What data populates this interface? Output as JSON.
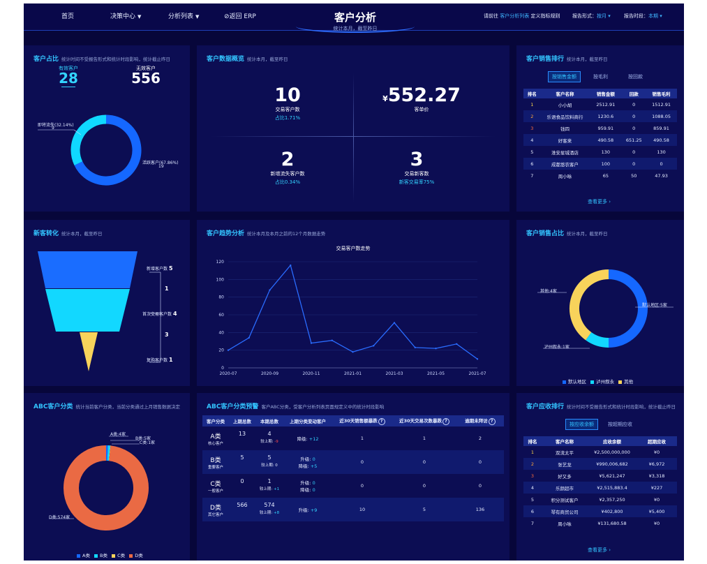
{
  "header": {
    "nav": [
      {
        "label": "首页",
        "dropdown": false
      },
      {
        "label": "决策中心",
        "dropdown": true
      },
      {
        "label": "分析列表",
        "dropdown": true
      },
      {
        "label": "⊘返回 ERP",
        "dropdown": false
      }
    ],
    "title": "客户分析",
    "subtitle": "统计本月，截至昨日",
    "goto_prefix": "请前往",
    "goto_link": "客户分析列表",
    "goto_suffix": "定义指标规则",
    "report_form_label": "报告形式：",
    "report_form_value": "按月",
    "report_period_label": "报告时段：",
    "report_period_value": "本期"
  },
  "customer_ratio": {
    "title": "客户占比",
    "subtitle": "统计时间不受报告形式和统计时段影响，统计截止昨日",
    "active_label": "有效客户",
    "active_value": "28",
    "inactive_label": "无效客户",
    "inactive_value": "556",
    "slices": [
      {
        "label": "即将流失(32.14%)",
        "count": "9",
        "value": 32.14,
        "color": "#10d8ff"
      },
      {
        "label": "活跃客户(67.86%)",
        "count": "19",
        "value": 67.86,
        "color": "#1568ff"
      }
    ]
  },
  "overview": {
    "title": "客户数据概览",
    "subtitle": "统计本月，截至昨日",
    "cells": [
      {
        "value": "10",
        "prefix": "",
        "label": "交易客户数",
        "sub": "占比1.71%"
      },
      {
        "value": "552.27",
        "prefix": "¥",
        "label": "客单价",
        "sub": ""
      },
      {
        "value": "2",
        "prefix": "",
        "label": "新增流失客户数",
        "sub": "占比0.34%"
      },
      {
        "value": "3",
        "prefix": "",
        "label": "交易新客数",
        "sub": "新客交易率75%"
      }
    ]
  },
  "sales_rank": {
    "title": "客户销售排行",
    "subtitle": "统计本月，截至昨日",
    "tabs": [
      "按销售金额",
      "按毛利",
      "按回款"
    ],
    "columns": [
      "排名",
      "客户名称",
      "销售金额",
      "回款",
      "销售毛利"
    ],
    "rows": [
      [
        "1",
        "小小胡",
        "2512.91",
        "0",
        "1512.91"
      ],
      [
        "2",
        "乐语食品饮料商行",
        "1230.6",
        "0",
        "1088.05"
      ],
      [
        "3",
        "钱四",
        "959.91",
        "0",
        "859.91"
      ],
      [
        "4",
        "好客来",
        "490.58",
        "651.25",
        "490.58"
      ],
      [
        "5",
        "淮安星城酒店",
        "130",
        "0",
        "130"
      ],
      [
        "6",
        "成都悠农客户",
        "100",
        "0",
        "0"
      ],
      [
        "7",
        "周小咏",
        "65",
        "50",
        "47.93"
      ]
    ],
    "more": "查看更多 ›"
  },
  "new_conversion": {
    "title": "新客转化",
    "subtitle": "统计本月，截至昨日",
    "stages": [
      {
        "label": "新增客户数",
        "value": "5",
        "color": "#1a6dff"
      },
      {
        "label": "首次交易客户数",
        "value": "4",
        "color": "#12d8ff"
      },
      {
        "label": "复购客户数",
        "value": "1",
        "color": "#f8d35b"
      }
    ],
    "drops": [
      "1",
      "3"
    ]
  },
  "trend": {
    "title": "客户趋势分析",
    "subtitle": "统计本月及本月之前的12个月数据走势"
  },
  "chart_data": {
    "type": "line",
    "title": "交易客户数走势",
    "x": [
      "2020-07",
      "2020-08",
      "2020-09",
      "2020-10",
      "2020-11",
      "2020-12",
      "2021-01",
      "2021-02",
      "2021-03",
      "2021-04",
      "2021-05",
      "2021-06",
      "2021-07"
    ],
    "xticks": [
      "2020-07",
      "2020-09",
      "2020-11",
      "2021-01",
      "2021-03",
      "2021-05",
      "2021-07"
    ],
    "series": [
      {
        "name": "",
        "values": [
          20,
          34,
          88,
          116,
          28,
          31,
          18,
          25,
          51,
          23,
          22,
          27,
          10
        ],
        "color": "#2a6cff"
      }
    ],
    "ylim": [
      0,
      120
    ],
    "yticks": [
      0,
      20,
      40,
      60,
      80,
      100,
      120
    ],
    "grid": true,
    "xlabel": "",
    "ylabel": ""
  },
  "sales_share": {
    "title": "客户销售占比",
    "subtitle": "统计本月，截至昨日",
    "slices": [
      {
        "label": "默认地区:5家",
        "value": 5,
        "color": "#1568ff"
      },
      {
        "label": "泸州叙永:1家",
        "value": 1,
        "color": "#12d8ff"
      },
      {
        "label": "其他:4家",
        "value": 4,
        "color": "#f8d35b"
      }
    ],
    "legend": [
      "默认地区",
      "泸州叙永",
      "其他"
    ]
  },
  "abc": {
    "title": "ABC客户分类",
    "subtitle": "统计当前客户分类，当前分类通过上月销售数据决定",
    "slices": [
      {
        "label": "A类:4家",
        "value": 4,
        "color": "#1568ff"
      },
      {
        "label": "B类:5家",
        "value": 5,
        "color": "#12d8ff"
      },
      {
        "label": "C类:1家",
        "value": 1,
        "color": "#f8d35b"
      },
      {
        "label": "D类:574家",
        "value": 574,
        "color": "#ea6a44"
      }
    ],
    "legend": [
      "A类",
      "B类",
      "C类",
      "D类"
    ]
  },
  "abc_warn": {
    "title": "ABC客户分类预警",
    "subtitle": "客户ABC分类，受客户分析列表页面规定义中的统计时段影响",
    "columns": [
      "客户分类",
      "上期总数",
      "本期总数",
      "上期分类变动客户",
      "近30天销售额暴跌",
      "近30天交易次数暴跌",
      "逾期未拜访"
    ],
    "rows": [
      {
        "cls": "A类",
        "desc": "核心客户",
        "prev": "13",
        "cur": "4",
        "cmp": "较上期:",
        "cmpv": "-9",
        "moves": [
          {
            "k": "降级:",
            "v": "+12"
          }
        ],
        "s": "1",
        "t": "1",
        "o": "2"
      },
      {
        "cls": "B类",
        "desc": "重要客户",
        "prev": "5",
        "cur": "5",
        "cmp": "较上期:",
        "cmpv": "0",
        "moves": [
          {
            "k": "升级:",
            "v": "0"
          },
          {
            "k": "降级:",
            "v": "+5"
          }
        ],
        "s": "0",
        "t": "0",
        "o": "0"
      },
      {
        "cls": "C类",
        "desc": "一般客户",
        "prev": "0",
        "cur": "1",
        "cmp": "较上期:",
        "cmpv": "+1",
        "moves": [
          {
            "k": "升级:",
            "v": "0"
          },
          {
            "k": "降级:",
            "v": "0"
          }
        ],
        "s": "0",
        "t": "0",
        "o": "0"
      },
      {
        "cls": "D类",
        "desc": "其它客户",
        "prev": "566",
        "cur": "574",
        "cmp": "较上期:",
        "cmpv": "+8",
        "moves": [
          {
            "k": "升级:",
            "v": "+9"
          }
        ],
        "s": "10",
        "t": "5",
        "o": "136"
      }
    ]
  },
  "receivable": {
    "title": "客户应收排行",
    "subtitle": "统计时间不受报告形式和统计时段影响，统计截止昨日",
    "tabs": [
      "按应收余额",
      "按超期应收"
    ],
    "columns": [
      "排名",
      "客户名称",
      "应收余额",
      "超期应收"
    ],
    "rows": [
      [
        "1",
        "双流太平",
        "¥2,500,000,000",
        "¥0"
      ],
      [
        "2",
        "张艺龙",
        "¥990,006,682",
        "¥6,972"
      ],
      [
        "3",
        "好又多",
        "¥5,621,247",
        "¥3,318"
      ],
      [
        "4",
        "乐颜超市",
        "¥2,515,883.4",
        "¥227"
      ],
      [
        "5",
        "积分测试客户",
        "¥2,357,250",
        "¥0"
      ],
      [
        "6",
        "琴有商贸公司",
        "¥402,800",
        "¥5,400"
      ],
      [
        "7",
        "周小咏",
        "¥131,680.58",
        "¥0"
      ]
    ],
    "more": "查看更多 ›"
  }
}
